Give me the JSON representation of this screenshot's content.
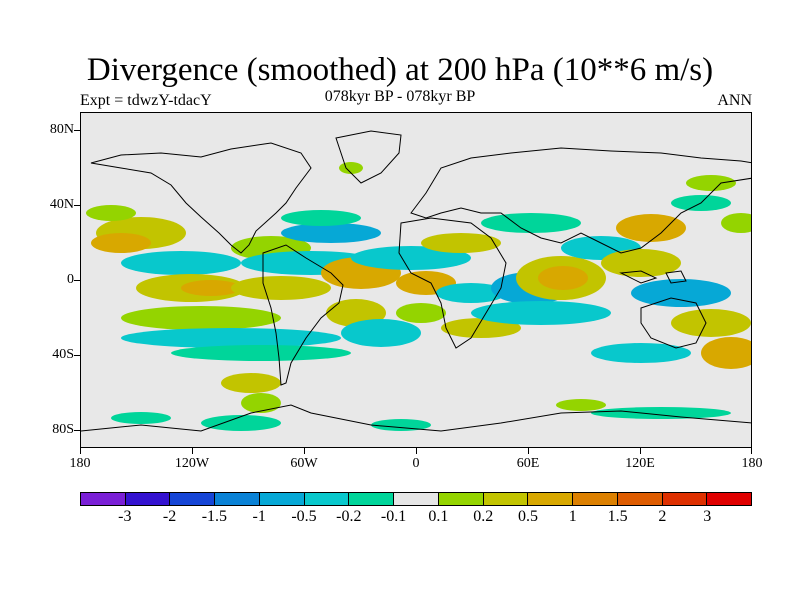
{
  "title": "Divergence (smoothed) at 200 hPa (10**6 m/s)",
  "expt": "Expt = tdwzY-tdacY",
  "period": "078kyr BP - 078kyr BP",
  "season": "ANN",
  "lat_labels": [
    "80N",
    "40N",
    "0",
    "40S",
    "80S"
  ],
  "lon_labels": [
    "180",
    "120W",
    "60W",
    "0",
    "60E",
    "120E",
    "180"
  ],
  "colorbar": {
    "colors": [
      "#7a1fd6",
      "#3412d0",
      "#1645d6",
      "#0a82d6",
      "#06a8d6",
      "#08c8cc",
      "#00d59a",
      "#e6e6e6",
      "#94d400",
      "#c2c400",
      "#d8a800",
      "#dc8000",
      "#de5c00",
      "#de3000",
      "#e00000"
    ],
    "labels": [
      "-3",
      "-2",
      "-1.5",
      "-1",
      "-0.5",
      "-0.2",
      "-0.1",
      "0.1",
      "0.2",
      "0.5",
      "1",
      "1.5",
      "2",
      "3"
    ]
  },
  "legend_colors": {
    "neg_strong": "#06a8d6",
    "neg_mid": "#08c8cc",
    "neg_weak": "#00d59a",
    "pos_weak": "#94d400",
    "pos_mid": "#c2c400",
    "pos_strong": "#d8a800",
    "pos_max": "#dc8000"
  }
}
